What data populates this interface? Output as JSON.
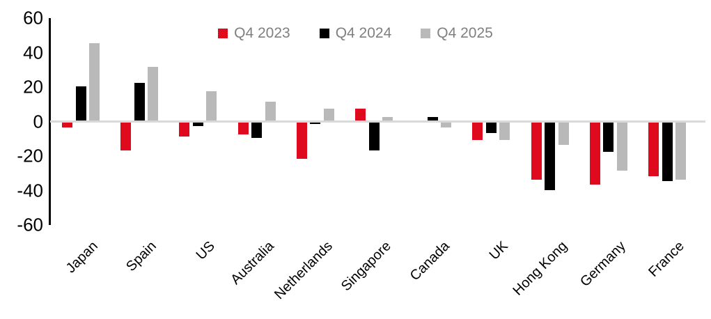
{
  "chart_data": {
    "type": "bar",
    "title": "",
    "xlabel": "",
    "ylabel": "",
    "categories": [
      "Japan",
      "Spain",
      "US",
      "Australia",
      "Netherlands",
      "Singapore",
      "Canada",
      "UK",
      "Hong Kong",
      "Germany",
      "France"
    ],
    "series": [
      {
        "name": "Q4 2023",
        "color": "#e00a1e",
        "values": [
          -3,
          -16,
          -8,
          -7,
          -21,
          7,
          0,
          -10,
          -33,
          -36,
          -31
        ]
      },
      {
        "name": "Q4 2024",
        "color": "#000000",
        "values": [
          20,
          22,
          -2,
          -9,
          -1,
          -16,
          2,
          -6,
          -39,
          -17,
          -34
        ]
      },
      {
        "name": "Q4 2025",
        "color": "#b9b9b9",
        "values": [
          45,
          31,
          17,
          11,
          7,
          2,
          -3,
          -10,
          -13,
          -28,
          -33
        ]
      }
    ],
    "yticks": [
      60,
      40,
      20,
      0,
      -20,
      -40,
      -60
    ],
    "ylim": [
      -60,
      60
    ],
    "grid": false,
    "legend_position": "top-center",
    "colors": {
      "axis_line": "#000000",
      "zero_line": "#d9d9d9",
      "legend_text": "#7f7f7f",
      "tick_text": "#000000",
      "background": "#ffffff"
    }
  }
}
